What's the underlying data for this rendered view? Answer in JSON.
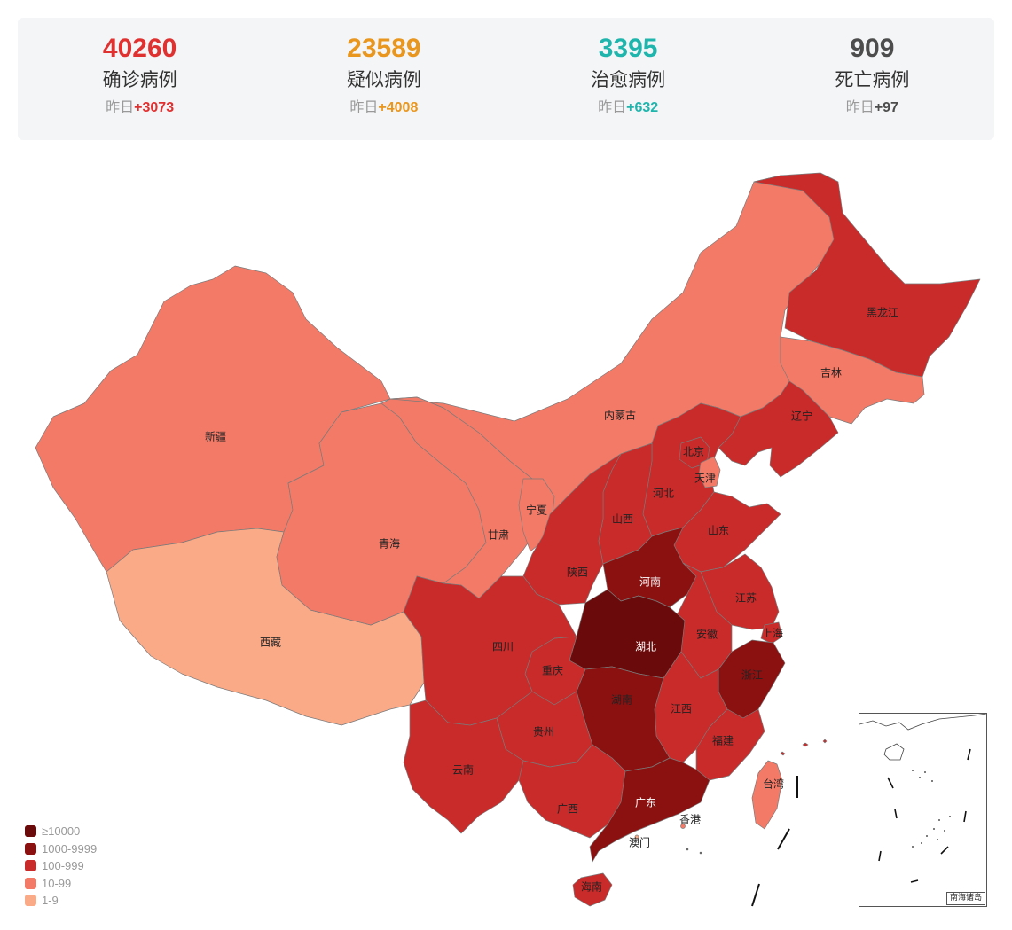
{
  "summary": [
    {
      "value": "40260",
      "label": "确诊病例",
      "delta_prefix": "昨日",
      "delta": "+3073",
      "color": "#e03131"
    },
    {
      "value": "23589",
      "label": "疑似病例",
      "delta_prefix": "昨日",
      "delta": "+4008",
      "color": "#e8961e"
    },
    {
      "value": "3395",
      "label": "治愈病例",
      "delta_prefix": "昨日",
      "delta": "+632",
      "color": "#1fb5ad"
    },
    {
      "value": "909",
      "label": "死亡病例",
      "delta_prefix": "昨日",
      "delta": "+97",
      "color": "#4d4d4d"
    }
  ],
  "legend": [
    {
      "label": "≥10000",
      "color": "#6b0a0a"
    },
    {
      "label": "1000-9999",
      "color": "#8b1111"
    },
    {
      "label": "100-999",
      "color": "#c92a2a"
    },
    {
      "label": "10-99",
      "color": "#f47a68"
    },
    {
      "label": "1-9",
      "color": "#fbaa88"
    }
  ],
  "provinces": [
    {
      "name": "黑龙江",
      "tier": "100-999"
    },
    {
      "name": "吉林",
      "tier": "10-99"
    },
    {
      "name": "辽宁",
      "tier": "100-999"
    },
    {
      "name": "内蒙古",
      "tier": "10-99"
    },
    {
      "name": "新疆",
      "tier": "10-99"
    },
    {
      "name": "北京",
      "tier": "100-999"
    },
    {
      "name": "天津",
      "tier": "10-99"
    },
    {
      "name": "河北",
      "tier": "100-999"
    },
    {
      "name": "宁夏",
      "tier": "10-99"
    },
    {
      "name": "山西",
      "tier": "100-999"
    },
    {
      "name": "山东",
      "tier": "100-999"
    },
    {
      "name": "甘肃",
      "tier": "10-99"
    },
    {
      "name": "青海",
      "tier": "10-99"
    },
    {
      "name": "陕西",
      "tier": "100-999"
    },
    {
      "name": "河南",
      "tier": "1000-9999"
    },
    {
      "name": "江苏",
      "tier": "100-999"
    },
    {
      "name": "西藏",
      "tier": "1-9"
    },
    {
      "name": "四川",
      "tier": "100-999"
    },
    {
      "name": "湖北",
      "tier": "≥10000"
    },
    {
      "name": "安徽",
      "tier": "100-999"
    },
    {
      "name": "上海",
      "tier": "100-999"
    },
    {
      "name": "重庆",
      "tier": "100-999"
    },
    {
      "name": "浙江",
      "tier": "1000-9999"
    },
    {
      "name": "湖南",
      "tier": "1000-9999"
    },
    {
      "name": "江西",
      "tier": "100-999"
    },
    {
      "name": "贵州",
      "tier": "100-999"
    },
    {
      "name": "福建",
      "tier": "100-999"
    },
    {
      "name": "云南",
      "tier": "100-999"
    },
    {
      "name": "台湾",
      "tier": "10-99"
    },
    {
      "name": "广西",
      "tier": "100-999"
    },
    {
      "name": "广东",
      "tier": "1000-9999"
    },
    {
      "name": "香港",
      "tier": "10-99"
    },
    {
      "name": "澳门",
      "tier": "1-9"
    },
    {
      "name": "海南",
      "tier": "100-999"
    }
  ],
  "inset_label": "南海诸岛"
}
